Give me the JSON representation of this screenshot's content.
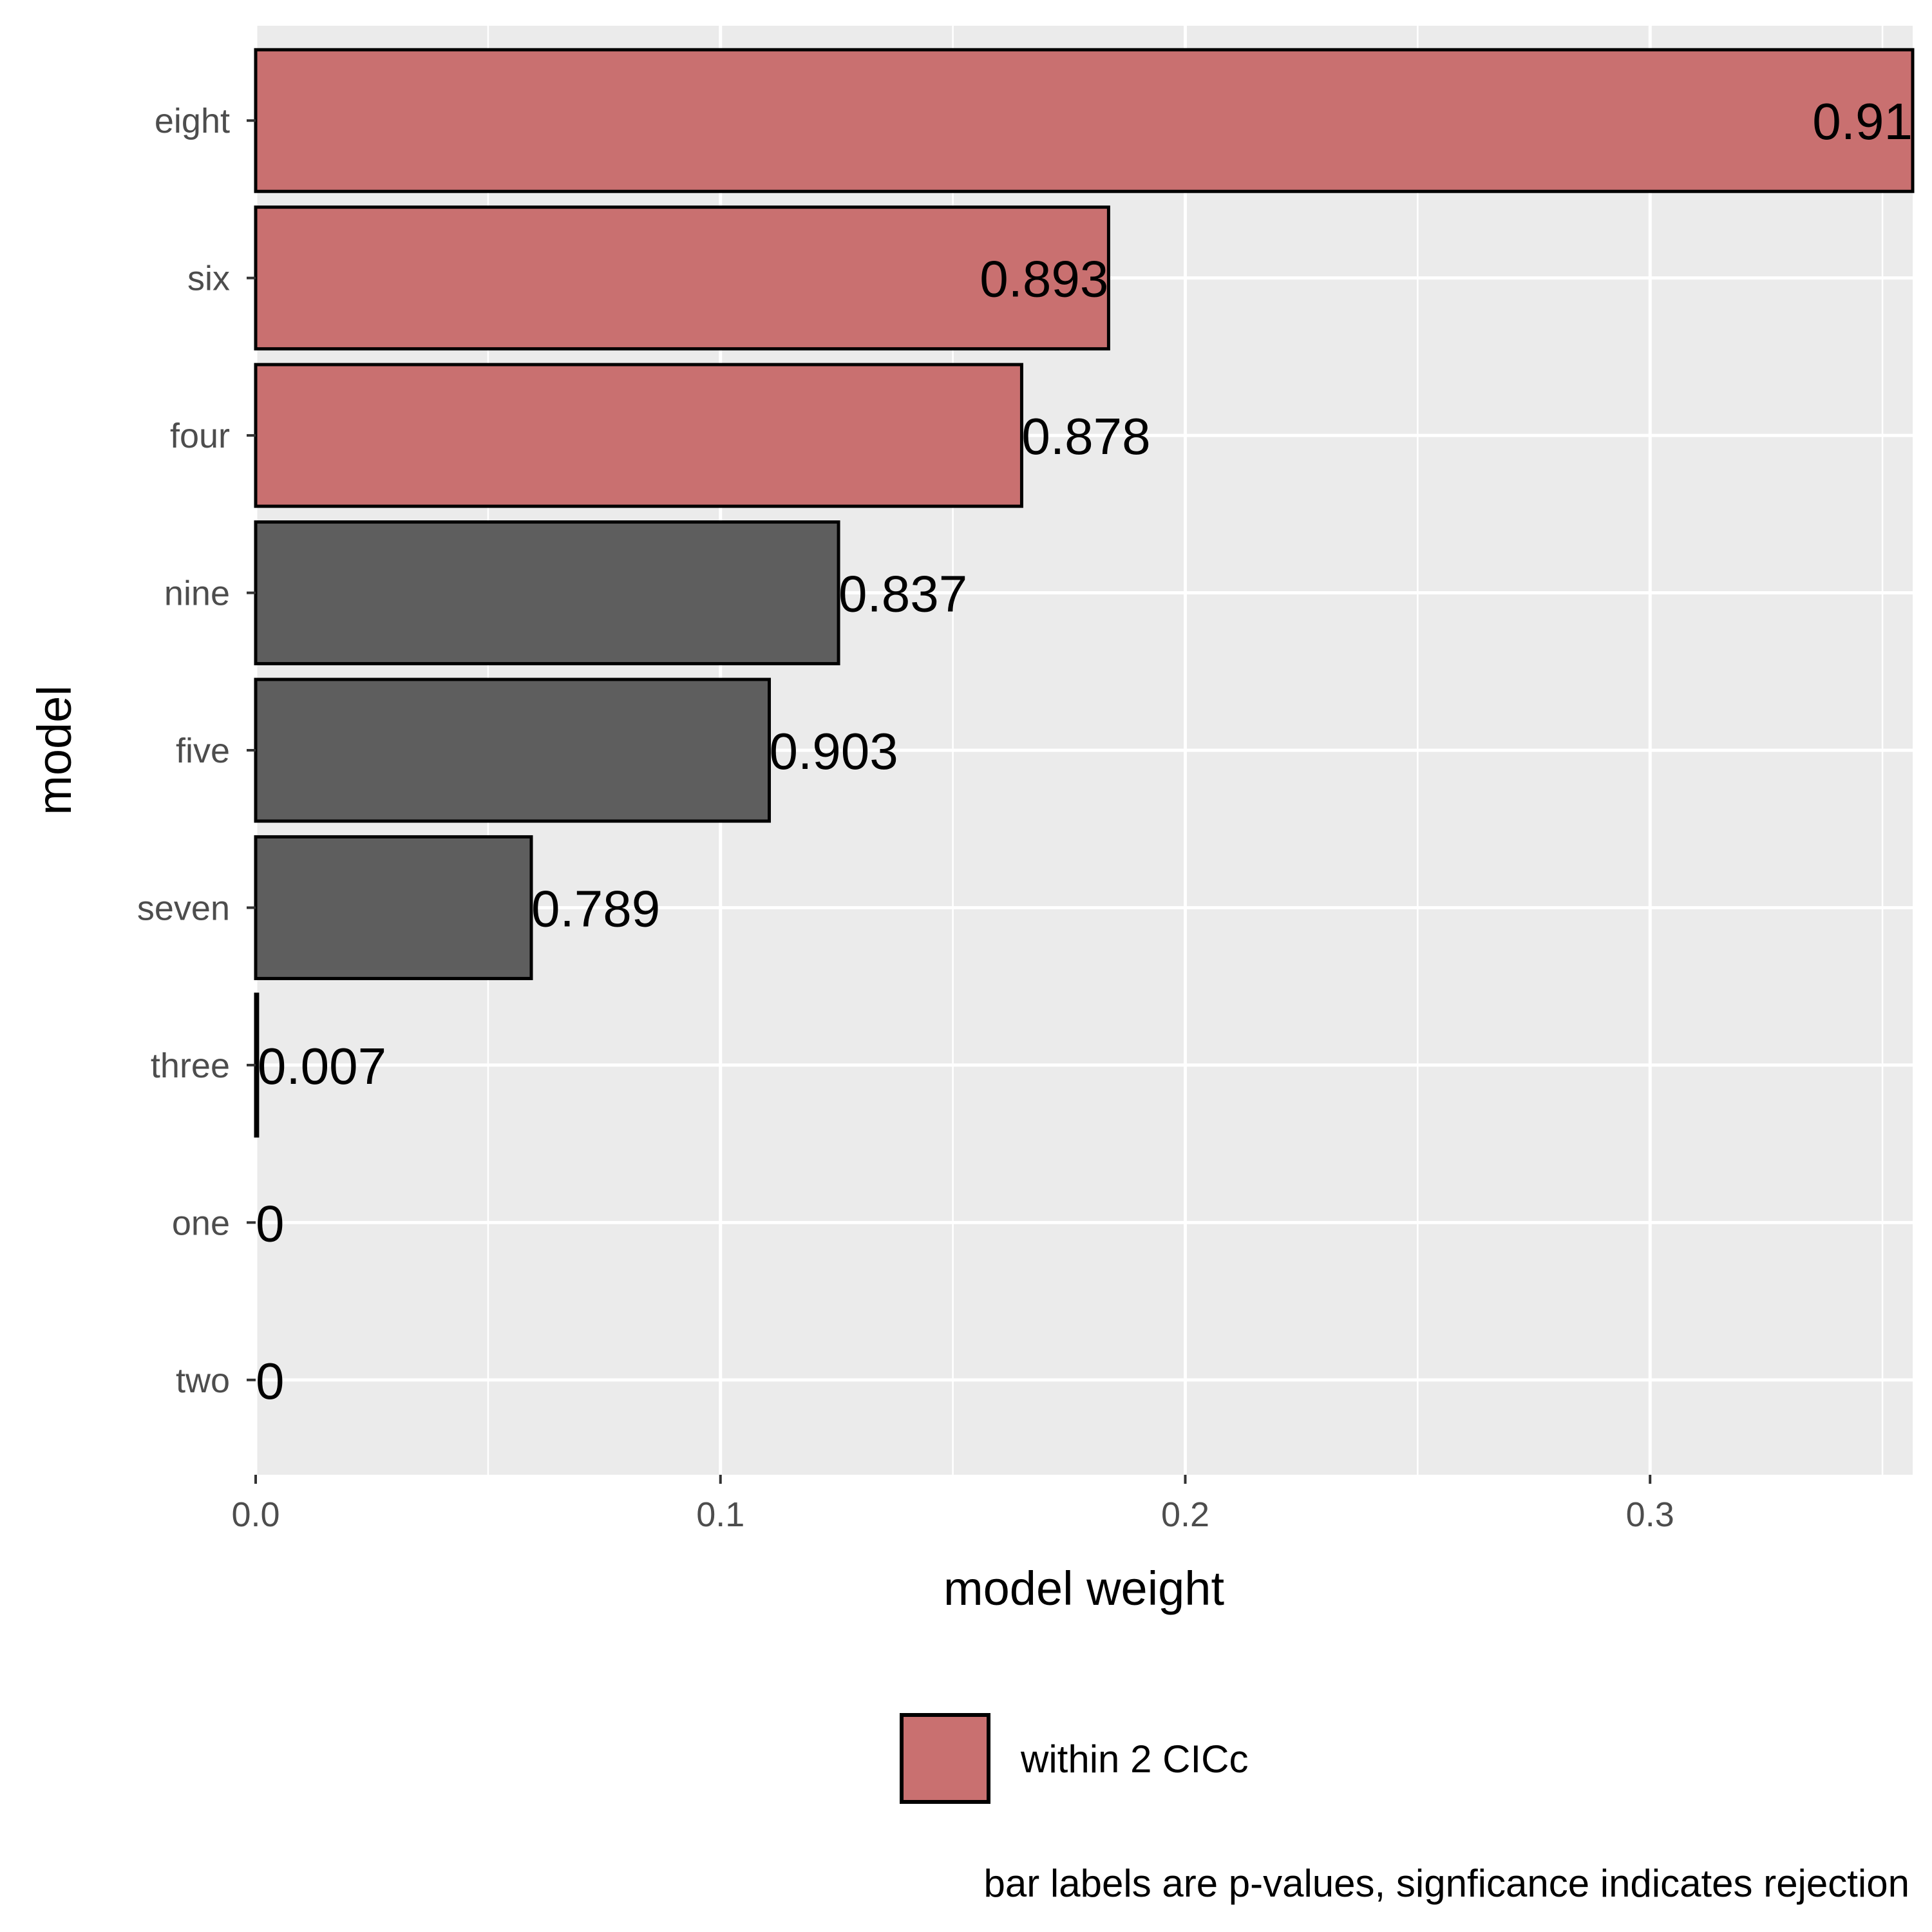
{
  "chart_data": {
    "type": "bar",
    "orientation": "horizontal",
    "xlabel": "model weight",
    "ylabel": "model",
    "xlim": [
      0,
      0.3565
    ],
    "x_ticks": [
      "0.0",
      "0.1",
      "0.2",
      "0.3"
    ],
    "x_tick_values": [
      0,
      0.1,
      0.2,
      0.3
    ],
    "grid": true,
    "categories": [
      "eight",
      "six",
      "four",
      "nine",
      "five",
      "seven",
      "three",
      "one",
      "two"
    ],
    "values": [
      0.3565,
      0.1835,
      0.1648,
      0.1254,
      0.1105,
      0.0593,
      0.0004,
      0.0,
      0.0
    ],
    "bar_labels": [
      "0.91",
      "0.893",
      "0.878",
      "0.837",
      "0.903",
      "0.789",
      "0.007",
      "0",
      "0"
    ],
    "within_2_cicc": [
      true,
      true,
      true,
      false,
      false,
      false,
      false,
      false,
      false
    ],
    "legend": {
      "position": "bottom",
      "label": "within 2 CICc"
    },
    "caption": "bar labels are p-values, signficance indicates rejection",
    "colors": {
      "highlight": "#c97070",
      "default": "#5e5e5e",
      "panel": "#ebebeb",
      "grid": "#ffffff"
    }
  }
}
